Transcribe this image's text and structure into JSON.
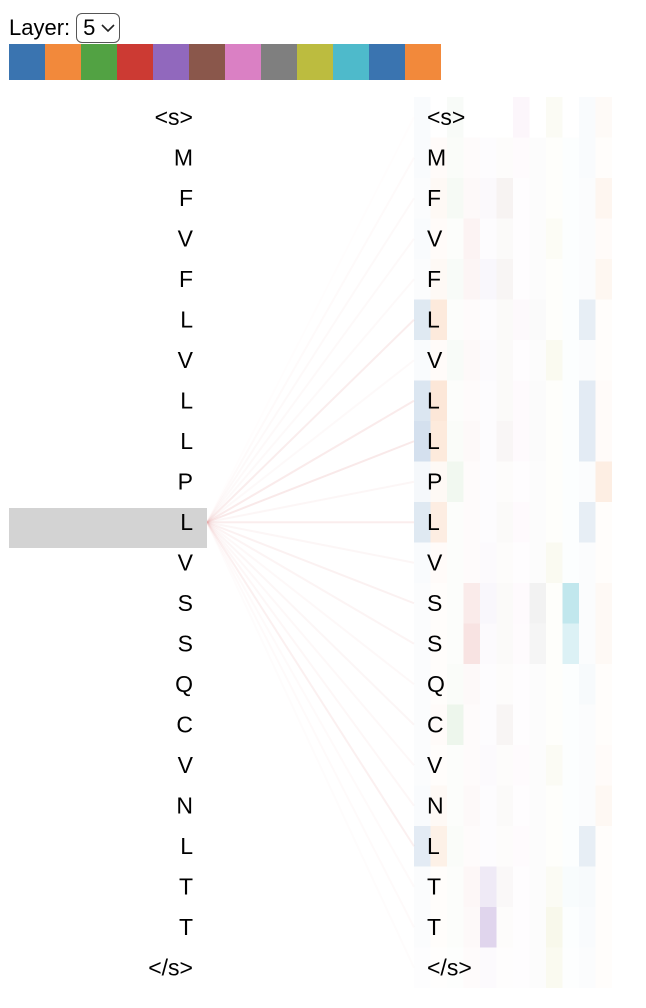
{
  "layer": {
    "label": "Layer:",
    "selected": "5"
  },
  "colors": {
    "heads": [
      "#3a74b0",
      "#f2893b",
      "#52a243",
      "#cc3a33",
      "#9168bd",
      "#8a574b",
      "#da80c4",
      "#7f7f7f",
      "#bcbc3f",
      "#4ebacb",
      "#3a74b0",
      "#f2893b"
    ],
    "selected_row_bg": "#d3d3d3",
    "link": "#e6a3a3"
  },
  "icons": {
    "dropdown": "chevron-down-icon"
  },
  "tokens": {
    "left": [
      "<s>",
      "M",
      "F",
      "V",
      "F",
      "L",
      "V",
      "L",
      "L",
      "P",
      "L",
      "V",
      "S",
      "S",
      "Q",
      "C",
      "V",
      "N",
      "L",
      "T",
      "T",
      "</s>"
    ],
    "right": [
      "<s>",
      "M",
      "F",
      "V",
      "F",
      "L",
      "V",
      "L",
      "L",
      "P",
      "L",
      "V",
      "S",
      "S",
      "Q",
      "C",
      "V",
      "N",
      "L",
      "T",
      "T",
      "</s>"
    ],
    "selected_index": 10
  },
  "attention": {
    "links": [
      0.02,
      0.06,
      0.07,
      0.07,
      0.07,
      0.2,
      0.07,
      0.22,
      0.24,
      0.1,
      0.2,
      0.1,
      0.15,
      0.12,
      0.08,
      0.1,
      0.08,
      0.09,
      0.16,
      0.06,
      0.05,
      0.03
    ],
    "heads": [
      [
        0.03,
        0.03,
        0.02,
        0.03,
        0.02,
        0.16,
        0.03,
        0.18,
        0.22,
        0.05,
        0.16,
        0.03,
        0.02,
        0.02,
        0.02,
        0.02,
        0.02,
        0.03,
        0.14,
        0.02,
        0.02,
        0.01
      ],
      [
        0.0,
        0.03,
        0.05,
        0.03,
        0.05,
        0.18,
        0.03,
        0.2,
        0.18,
        0.05,
        0.15,
        0.03,
        0.02,
        0.02,
        0.02,
        0.03,
        0.02,
        0.05,
        0.12,
        0.02,
        0.02,
        0.01
      ],
      [
        0.04,
        0.03,
        0.05,
        0.02,
        0.04,
        0.02,
        0.04,
        0.02,
        0.03,
        0.08,
        0.02,
        0.02,
        0.02,
        0.02,
        0.03,
        0.1,
        0.02,
        0.02,
        0.03,
        0.02,
        0.02,
        0.01
      ],
      [
        0.0,
        0.02,
        0.03,
        0.06,
        0.05,
        0.02,
        0.03,
        0.02,
        0.03,
        0.02,
        0.02,
        0.02,
        0.1,
        0.14,
        0.03,
        0.02,
        0.02,
        0.03,
        0.02,
        0.04,
        0.03,
        0.02
      ],
      [
        0.0,
        0.02,
        0.04,
        0.02,
        0.05,
        0.02,
        0.03,
        0.02,
        0.02,
        0.02,
        0.02,
        0.03,
        0.05,
        0.03,
        0.02,
        0.02,
        0.03,
        0.02,
        0.02,
        0.14,
        0.28,
        0.03
      ],
      [
        0.0,
        0.02,
        0.07,
        0.03,
        0.06,
        0.03,
        0.03,
        0.03,
        0.05,
        0.02,
        0.03,
        0.02,
        0.03,
        0.03,
        0.02,
        0.06,
        0.02,
        0.03,
        0.02,
        0.04,
        0.02,
        0.01
      ],
      [
        0.07,
        0.03,
        0.02,
        0.02,
        0.02,
        0.05,
        0.02,
        0.04,
        0.04,
        0.02,
        0.04,
        0.02,
        0.04,
        0.03,
        0.02,
        0.02,
        0.03,
        0.02,
        0.03,
        0.02,
        0.02,
        0.02
      ],
      [
        0.0,
        0.02,
        0.02,
        0.02,
        0.02,
        0.04,
        0.02,
        0.03,
        0.03,
        0.02,
        0.02,
        0.02,
        0.1,
        0.08,
        0.02,
        0.02,
        0.02,
        0.02,
        0.02,
        0.02,
        0.02,
        0.02
      ],
      [
        0.06,
        0.02,
        0.02,
        0.05,
        0.02,
        0.02,
        0.08,
        0.02,
        0.02,
        0.02,
        0.02,
        0.07,
        0.02,
        0.02,
        0.02,
        0.02,
        0.06,
        0.02,
        0.02,
        0.06,
        0.1,
        0.08
      ],
      [
        0.0,
        0.02,
        0.02,
        0.02,
        0.02,
        0.02,
        0.02,
        0.02,
        0.02,
        0.02,
        0.02,
        0.02,
        0.35,
        0.2,
        0.02,
        0.02,
        0.02,
        0.02,
        0.02,
        0.04,
        0.02,
        0.01
      ],
      [
        0.03,
        0.03,
        0.02,
        0.02,
        0.02,
        0.12,
        0.02,
        0.14,
        0.14,
        0.02,
        0.12,
        0.02,
        0.02,
        0.02,
        0.04,
        0.02,
        0.02,
        0.02,
        0.12,
        0.04,
        0.03,
        0.02
      ],
      [
        0.04,
        0.02,
        0.08,
        0.03,
        0.07,
        0.02,
        0.02,
        0.03,
        0.03,
        0.14,
        0.02,
        0.02,
        0.05,
        0.05,
        0.02,
        0.02,
        0.03,
        0.06,
        0.02,
        0.02,
        0.02,
        0.02
      ]
    ]
  }
}
